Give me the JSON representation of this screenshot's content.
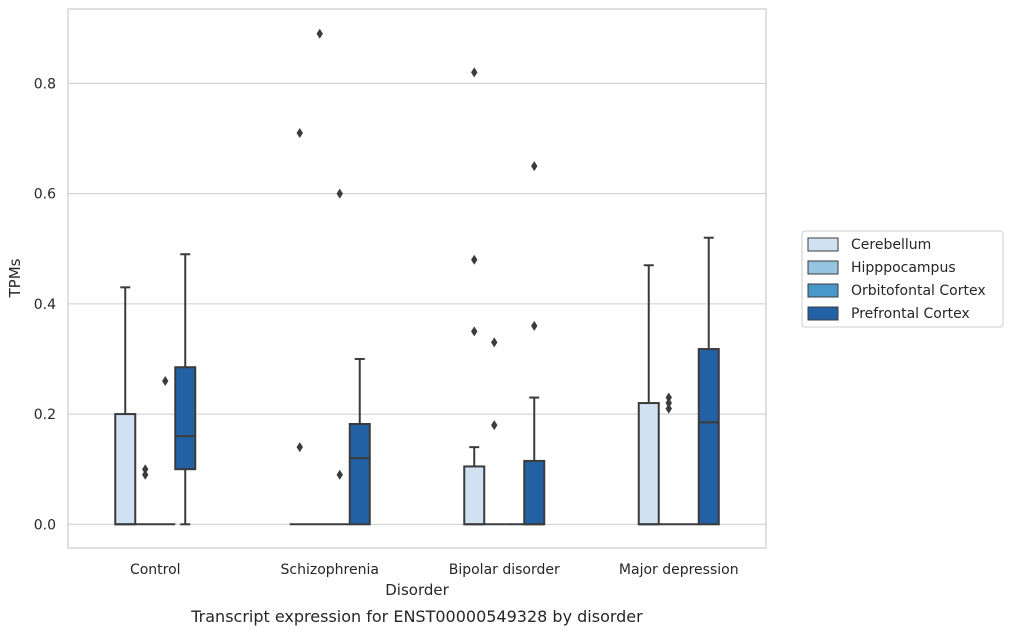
{
  "chart_data": {
    "type": "boxplot",
    "title": "Transcript expression for ENST00000549328 by disorder",
    "xlabel": "Disorder",
    "ylabel": "TPMs",
    "ylim": [
      -0.043,
      0.935
    ],
    "yticks": [
      0.0,
      0.2,
      0.4,
      0.6,
      0.8
    ],
    "ytick_labels": [
      "0.0",
      "0.2",
      "0.4",
      "0.6",
      "0.8"
    ],
    "grid": "horizontal",
    "legend_placement": "right-outside",
    "categories": [
      "Control",
      "Schizophrenia",
      "Bipolar disorder",
      "Major depression"
    ],
    "series": [
      {
        "name": "Cerebellum",
        "color": "#d0e1f2",
        "boxes": [
          {
            "q1": 0.0,
            "median": 0.0,
            "q3": 0.2,
            "whisker_low": 0.0,
            "whisker_high": 0.43,
            "outliers": []
          },
          {
            "q1": 0.0,
            "median": 0.0,
            "q3": 0.0,
            "whisker_low": 0.0,
            "whisker_high": 0.0,
            "outliers": [
              0.14,
              0.71
            ]
          },
          {
            "q1": 0.0,
            "median": 0.0,
            "q3": 0.105,
            "whisker_low": 0.0,
            "whisker_high": 0.14,
            "outliers": [
              0.35,
              0.48,
              0.82
            ]
          },
          {
            "q1": 0.0,
            "median": 0.0,
            "q3": 0.22,
            "whisker_low": 0.0,
            "whisker_high": 0.47,
            "outliers": []
          }
        ]
      },
      {
        "name": "Hipppocampus",
        "color": "#94c4df",
        "boxes": [
          {
            "q1": 0.0,
            "median": 0.0,
            "q3": 0.0,
            "whisker_low": 0.0,
            "whisker_high": 0.0,
            "outliers": [
              0.09,
              0.1
            ]
          },
          {
            "q1": 0.0,
            "median": 0.0,
            "q3": 0.0,
            "whisker_low": 0.0,
            "whisker_high": 0.0,
            "outliers": [
              0.89
            ]
          },
          {
            "q1": 0.0,
            "median": 0.0,
            "q3": 0.0,
            "whisker_low": 0.0,
            "whisker_high": 0.0,
            "outliers": [
              0.18,
              0.33
            ]
          },
          {
            "q1": 0.0,
            "median": 0.0,
            "q3": 0.0,
            "whisker_low": 0.0,
            "whisker_high": 0.0,
            "outliers": [
              0.21,
              0.22,
              0.23
            ]
          }
        ]
      },
      {
        "name": "Orbitofontal Cortex",
        "color": "#4a98c9",
        "boxes": [
          {
            "q1": 0.0,
            "median": 0.0,
            "q3": 0.0,
            "whisker_low": 0.0,
            "whisker_high": 0.0,
            "outliers": [
              0.26
            ]
          },
          {
            "q1": 0.0,
            "median": 0.0,
            "q3": 0.0,
            "whisker_low": 0.0,
            "whisker_high": 0.0,
            "outliers": [
              0.09,
              0.6
            ]
          },
          {
            "q1": 0.0,
            "median": 0.0,
            "q3": 0.0,
            "whisker_low": 0.0,
            "whisker_high": 0.0,
            "outliers": []
          },
          {
            "q1": 0.0,
            "median": 0.0,
            "q3": 0.0,
            "whisker_low": 0.0,
            "whisker_high": 0.0,
            "outliers": []
          }
        ]
      },
      {
        "name": "Prefrontal Cortex",
        "color": "#2361a5",
        "boxes": [
          {
            "q1": 0.1,
            "median": 0.16,
            "q3": 0.285,
            "whisker_low": 0.0,
            "whisker_high": 0.49,
            "outliers": []
          },
          {
            "q1": 0.0,
            "median": 0.12,
            "q3": 0.182,
            "whisker_low": 0.0,
            "whisker_high": 0.3,
            "outliers": []
          },
          {
            "q1": 0.0,
            "median": 0.0,
            "q3": 0.115,
            "whisker_low": 0.0,
            "whisker_high": 0.23,
            "outliers": [
              0.36,
              0.65
            ]
          },
          {
            "q1": 0.0,
            "median": 0.185,
            "q3": 0.318,
            "whisker_low": 0.0,
            "whisker_high": 0.52,
            "outliers": []
          }
        ]
      }
    ]
  },
  "style": {
    "grid_color": "#cccccc",
    "axis_color": "#cccccc",
    "box_edge_color": "#3b3b3b",
    "outlier_color": "#3b3b3b"
  }
}
